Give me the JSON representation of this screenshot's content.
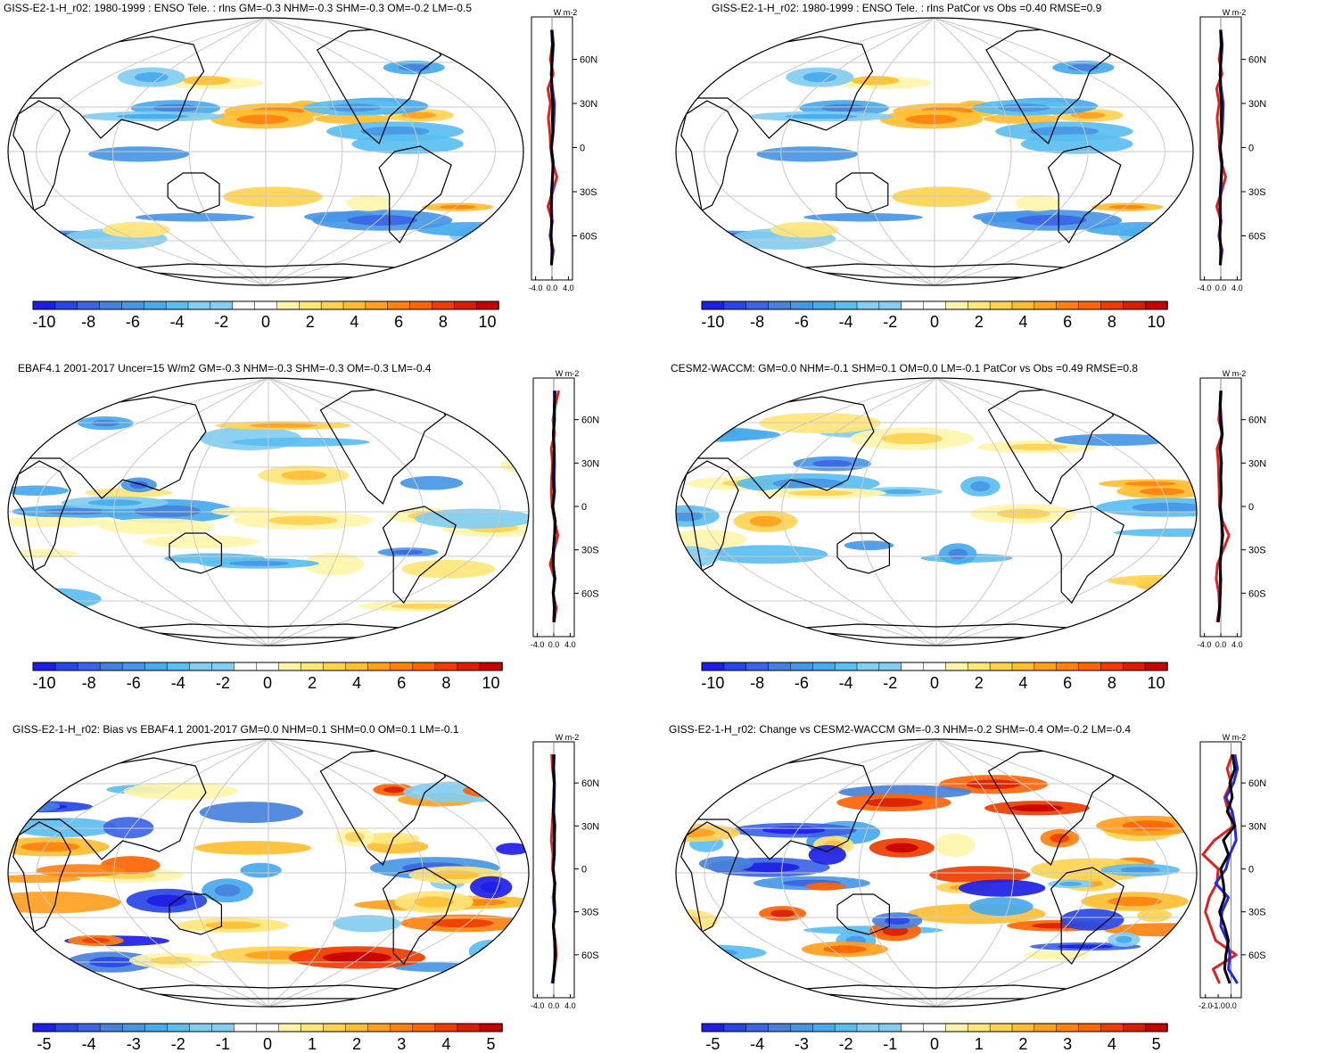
{
  "figure": {
    "variable": "rlns",
    "units_label": "W m-2",
    "palette": {
      "neg": [
        "#1e1ee6",
        "#2846e6",
        "#3c64e6",
        "#4682dc",
        "#4696e6",
        "#46aaeb",
        "#5abef0",
        "#82cdf0"
      ],
      "zero": "#ffffff",
      "pos": [
        "#fff5aa",
        "#ffe678",
        "#ffd250",
        "#ffbe32",
        "#ffa01e",
        "#ff820f",
        "#ff6405",
        "#f03c00",
        "#dc1e00",
        "#c80000"
      ],
      "continent_outline": "#000000",
      "grid": "#c8c8c8",
      "ocean_bg": "#ffffff"
    }
  },
  "panels": [
    {
      "id": "model",
      "title": "GISS-E2-1-H_r02: 1980-1999 : ENSO Tele. : rlns GM=-0.3 NHM=-0.3 SHM=-0.3 OM=-0.2 LM=-0.5",
      "colorbar_ticks": [
        "-10",
        "-8",
        "-6",
        "-4",
        "-2",
        "0",
        "2",
        "4",
        "6",
        "8",
        "10"
      ],
      "zonal_xticks": [
        "-4.0",
        "0.0",
        "4.0"
      ],
      "zonal_lat_labels": [
        "60N",
        "30N",
        "0",
        "30S",
        "60S"
      ],
      "units": "W m-2"
    },
    {
      "id": "model-vs-obs",
      "title": "GISS-E2-1-H_r02: 1980-1999 : ENSO Tele. : rlns PatCor vs Obs =0.40 RMSE=0.9",
      "colorbar_ticks": [
        "-10",
        "-8",
        "-6",
        "-4",
        "-2",
        "0",
        "2",
        "4",
        "6",
        "8",
        "10"
      ],
      "zonal_xticks": [
        "-4.0",
        "0.0",
        "4.0"
      ],
      "zonal_lat_labels": [
        "60N",
        "30N",
        "0",
        "30S",
        "60S"
      ],
      "units": "W m-2"
    },
    {
      "id": "obs",
      "title": "EBAF4.1 2001-2017 Uncer=15 W/m2 GM=-0.3 NHM=-0.3 SHM=-0.3 OM=-0.3 LM=-0.4",
      "colorbar_ticks": [
        "-10",
        "-8",
        "-6",
        "-4",
        "-2",
        "0",
        "2",
        "4",
        "6",
        "8",
        "10"
      ],
      "zonal_xticks": [
        "-4.0",
        "0.0",
        "4.0"
      ],
      "zonal_lat_labels": [
        "60N",
        "30N",
        "0",
        "30S",
        "60S"
      ],
      "units": "W m-2"
    },
    {
      "id": "reference-model",
      "title": "CESM2-WACCM: GM=0.0 NHM=-0.1 SHM=0.1 OM=0.0 LM=-0.1 PatCor vs Obs =0.49 RMSE=0.8",
      "colorbar_ticks": [
        "-10",
        "-8",
        "-6",
        "-4",
        "-2",
        "0",
        "2",
        "4",
        "6",
        "8",
        "10"
      ],
      "zonal_xticks": [
        "-4.0",
        "0.0",
        "4.0"
      ],
      "zonal_lat_labels": [
        "60N",
        "30N",
        "0",
        "30S",
        "60S"
      ],
      "units": "W m-2"
    },
    {
      "id": "bias",
      "title": "GISS-E2-1-H_r02: Bias vs EBAF4.1 2001-2017 GM=0.0 NHM=0.1 SHM=0.0 OM=0.1 LM=-0.1",
      "colorbar_ticks": [
        "-5",
        "-4",
        "-3",
        "-2",
        "-1",
        "0",
        "1",
        "2",
        "3",
        "4",
        "5"
      ],
      "zonal_xticks": [
        "-4.0",
        "0.0",
        "4.0"
      ],
      "zonal_lat_labels": [
        "60N",
        "30N",
        "0",
        "30S",
        "60S"
      ],
      "units": "W m-2"
    },
    {
      "id": "change",
      "title": "GISS-E2-1-H_r02: Change vs CESM2-WACCM GM=-0.3 NHM=-0.2 SHM=-0.4 OM=-0.2 LM=-0.4",
      "colorbar_ticks": [
        "-5",
        "-4",
        "-3",
        "-2",
        "-1",
        "0",
        "1",
        "2",
        "3",
        "4",
        "5"
      ],
      "zonal_xticks": [
        "-2.0",
        "-1.0",
        "0.0"
      ],
      "zonal_lat_labels": [
        "60N",
        "30N",
        "0",
        "30S",
        "60S"
      ],
      "units": "W m-2"
    }
  ],
  "chart_data": [
    {
      "type": "heatmap",
      "title": "GISS-E2-1-H_r02: 1980-1999 : ENSO Tele. : rlns GM=-0.3 NHM=-0.3 SHM=-0.3 OM=-0.2 LM=-0.5",
      "projection": "Robinson, Pacific-centred",
      "colorbar": {
        "min": -10,
        "max": 10,
        "ticks": [
          -10,
          -8,
          -6,
          -4,
          -2,
          0,
          2,
          4,
          6,
          8,
          10
        ]
      },
      "zonal_mean": {
        "xlim": [
          -5,
          5
        ],
        "xticks": [
          -4,
          0,
          4
        ],
        "lat": [
          -80,
          -70,
          -60,
          -50,
          -40,
          -30,
          -20,
          -10,
          0,
          10,
          20,
          30,
          40,
          50,
          60,
          70,
          80
        ],
        "series": [
          {
            "name": "model",
            "color": "black",
            "values": [
              -0.1,
              0,
              -0.2,
              -0.1,
              -0.2,
              -0.1,
              0.1,
              0.3,
              -0.2,
              0.2,
              0.1,
              0.2,
              -0.1,
              -0.1,
              0,
              0.1,
              0
            ]
          },
          {
            "name": "obs",
            "color": "red",
            "values": [
              -0.2,
              0.4,
              -0.5,
              0.1,
              -1.0,
              0.2,
              1.2,
              0.1,
              -0.3,
              -0.5,
              -0.9,
              -0.4,
              -1.0,
              0.3,
              -0.4,
              0.1,
              -0.1
            ]
          },
          {
            "name": "reference",
            "color": "blue",
            "values": [
              -0.1,
              0.1,
              -0.3,
              0,
              -0.1,
              0,
              0.2,
              0.2,
              -0.1,
              0.3,
              0.5,
              0.6,
              0.1,
              -0.2,
              0.1,
              0.4,
              0
            ]
          }
        ]
      }
    },
    {
      "type": "heatmap",
      "title": "GISS-E2-1-H_r02: 1980-1999 : ENSO Tele. : rlns PatCor vs Obs =0.40 RMSE=0.9",
      "projection": "Robinson, Pacific-centred",
      "colorbar": {
        "min": -10,
        "max": 10,
        "ticks": [
          -10,
          -8,
          -6,
          -4,
          -2,
          0,
          2,
          4,
          6,
          8,
          10
        ]
      },
      "zonal_mean": {
        "xlim": [
          -5,
          5
        ],
        "xticks": [
          -4,
          0,
          4
        ],
        "lat": [
          -80,
          -70,
          -60,
          -50,
          -40,
          -30,
          -20,
          -10,
          0,
          10,
          20,
          30,
          40,
          50,
          60,
          70,
          80
        ],
        "series": [
          {
            "name": "model",
            "color": "black",
            "values": [
              -0.1,
              0,
              -0.2,
              -0.1,
              -0.2,
              -0.1,
              0.1,
              0.3,
              -0.2,
              0.2,
              0.1,
              0.2,
              -0.1,
              -0.1,
              0,
              0.1,
              0
            ]
          },
          {
            "name": "obs",
            "color": "red",
            "values": [
              -0.2,
              0.4,
              -0.5,
              0.1,
              -1.0,
              0.2,
              1.2,
              0.1,
              -0.3,
              -0.5,
              -0.9,
              -0.4,
              -1.0,
              0.3,
              -0.4,
              0.1,
              -0.1
            ]
          },
          {
            "name": "reference",
            "color": "blue",
            "values": [
              -0.1,
              0.1,
              -0.3,
              0,
              -0.1,
              0,
              0.2,
              0.2,
              -0.1,
              0.3,
              0.5,
              0.6,
              0.1,
              -0.2,
              0.1,
              0.4,
              0
            ]
          }
        ]
      }
    },
    {
      "type": "heatmap",
      "title": "EBAF4.1 2001-2017 Uncer=15 W/m2 GM=-0.3 NHM=-0.3 SHM=-0.3 OM=-0.3 LM=-0.4",
      "projection": "Robinson, Pacific-centred",
      "colorbar": {
        "min": -10,
        "max": 10,
        "ticks": [
          -10,
          -8,
          -6,
          -4,
          -2,
          0,
          2,
          4,
          6,
          8,
          10
        ]
      },
      "zonal_mean": {
        "xlim": [
          -5,
          5
        ],
        "xticks": [
          -4,
          0,
          4
        ],
        "lat": [
          -80,
          -70,
          -60,
          -50,
          -40,
          -30,
          -20,
          -10,
          0,
          10,
          20,
          30,
          40,
          50,
          60,
          70,
          80
        ],
        "series": [
          {
            "name": "obs",
            "color": "black",
            "values": [
              0,
              0.2,
              -0.1,
              0.3,
              -0.2,
              -0.1,
              0.2,
              0.4,
              -0.3,
              0.1,
              -0.2,
              0,
              0.1,
              -0.1,
              0.2,
              0.1,
              0.3
            ]
          },
          {
            "name": "model",
            "color": "red",
            "values": [
              0.1,
              0.6,
              -0.2,
              0.2,
              -0.9,
              0.1,
              1.0,
              0.2,
              -0.4,
              -0.6,
              -0.5,
              -0.3,
              -0.6,
              0.2,
              -0.2,
              0.4,
              1.2
            ]
          },
          {
            "name": "reference",
            "color": "blue",
            "values": [
              0,
              0.1,
              -0.1,
              0.2,
              -0.1,
              0,
              0.2,
              0.3,
              -0.2,
              0.2,
              0.1,
              0.2,
              0.1,
              -0.1,
              0.1,
              0.2,
              0.1
            ]
          }
        ]
      }
    },
    {
      "type": "heatmap",
      "title": "CESM2-WACCM: GM=0.0 NHM=-0.1 SHM=0.1 OM=0.0 LM=-0.1 PatCor vs Obs =0.49 RMSE=0.8",
      "projection": "Robinson, Pacific-centred",
      "colorbar": {
        "min": -10,
        "max": 10,
        "ticks": [
          -10,
          -8,
          -6,
          -4,
          -2,
          0,
          2,
          4,
          6,
          8,
          10
        ]
      },
      "zonal_mean": {
        "xlim": [
          -5,
          5
        ],
        "xticks": [
          -4,
          0,
          4
        ],
        "lat": [
          -80,
          -70,
          -60,
          -50,
          -40,
          -30,
          -20,
          -10,
          0,
          10,
          20,
          30,
          40,
          50,
          60,
          70,
          80
        ],
        "series": [
          {
            "name": "reference",
            "color": "black",
            "values": [
              -0.6,
              -0.3,
              -0.1,
              0,
              -0.2,
              0.1,
              0.5,
              0.2,
              -0.1,
              0.1,
              0,
              0.1,
              -0.2,
              0.3,
              -0.1,
              -0.2,
              0
            ]
          },
          {
            "name": "model",
            "color": "red",
            "values": [
              -0.9,
              -0.3,
              -0.5,
              -1.1,
              -0.8,
              0.6,
              2.0,
              0.4,
              -0.3,
              -0.4,
              -0.5,
              -0.6,
              -0.9,
              0.4,
              -0.5,
              -0.1,
              0.1
            ]
          },
          {
            "name": "obs",
            "color": "blue",
            "values": [
              -0.7,
              -0.2,
              -0.2,
              -0.1,
              -0.1,
              0.1,
              0.4,
              0.2,
              -0.2,
              0.1,
              0,
              0.2,
              -0.1,
              0.4,
              0.1,
              -0.1,
              0
            ]
          }
        ]
      }
    },
    {
      "type": "heatmap",
      "title": "GISS-E2-1-H_r02: Bias vs EBAF4.1 2001-2017 GM=0.0 NHM=0.1 SHM=0.0 OM=0.1 LM=-0.1",
      "projection": "Robinson, Pacific-centred",
      "colorbar": {
        "min": -5,
        "max": 5,
        "ticks": [
          -5,
          -4,
          -3,
          -2,
          -1,
          0,
          1,
          2,
          3,
          4,
          5
        ]
      },
      "zonal_mean": {
        "xlim": [
          -5,
          5
        ],
        "xticks": [
          -4,
          0,
          4
        ],
        "lat": [
          -80,
          -70,
          -60,
          -50,
          -40,
          -30,
          -20,
          -10,
          0,
          10,
          20,
          30,
          40,
          50,
          60,
          70,
          80
        ],
        "series": [
          {
            "name": "model",
            "color": "black",
            "values": [
              -0.2,
              0.1,
              0.4,
              0.2,
              -0.1,
              0.3,
              0.1,
              0.2,
              -0.1,
              0.1,
              0.2,
              0.1,
              -0.1,
              0,
              0.1,
              -0.1,
              0
            ]
          },
          {
            "name": "obs",
            "color": "red",
            "values": [
              -0.3,
              0.2,
              0.6,
              0.4,
              -0.1,
              0.2,
              -0.2,
              0.3,
              -0.3,
              -0.2,
              -0.6,
              -0.4,
              -0.2,
              0,
              0.1,
              -0.3,
              -0.5
            ]
          },
          {
            "name": "reference",
            "color": "blue",
            "values": [
              -0.4,
              0.1,
              0.3,
              0.2,
              -0.1,
              0.2,
              0.1,
              0.3,
              -0.2,
              0.2,
              0.1,
              0.3,
              0,
              0.1,
              0.2,
              0,
              0.1
            ]
          }
        ]
      }
    },
    {
      "type": "heatmap",
      "title": "GISS-E2-1-H_r02: Change vs CESM2-WACCM GM=-0.3 NHM=-0.2 SHM=-0.4 OM=-0.2 LM=-0.4",
      "projection": "Robinson, Pacific-centred",
      "colorbar": {
        "min": -5,
        "max": 5,
        "ticks": [
          -5,
          -4,
          -3,
          -2,
          -1,
          0,
          1,
          2,
          3,
          4,
          5
        ]
      },
      "zonal_mean": {
        "xlim": [
          -2.4,
          0.8
        ],
        "xticks": [
          -2,
          -1,
          0
        ],
        "lat": [
          -80,
          -70,
          -60,
          -50,
          -40,
          -30,
          -20,
          -10,
          0,
          10,
          20,
          30,
          40,
          50,
          60,
          70,
          80
        ],
        "series": [
          {
            "name": "model",
            "color": "black",
            "values": [
              -0.1,
              -0.5,
              -0.4,
              -0.2,
              -0.5,
              -0.9,
              -0.5,
              -0.6,
              -0.8,
              -0.2,
              -0.6,
              0.3,
              -0.3,
              0.1,
              -0.1,
              0.3,
              0.1
            ]
          },
          {
            "name": "obs",
            "color": "red",
            "values": [
              -0.9,
              -1.4,
              0.4,
              -1.2,
              -1.6,
              -2.0,
              -1.7,
              -1.1,
              -1.0,
              -2.2,
              -1.3,
              0.2,
              -0.2,
              -0.5,
              0,
              -0.3,
              0.1
            ]
          },
          {
            "name": "reference",
            "color": "blue",
            "values": [
              0.5,
              -0.2,
              -0.1,
              -0.3,
              -0.8,
              -0.7,
              -0.2,
              -1.2,
              -0.4,
              -0.1,
              0.4,
              0.3,
              0.1,
              -0.4,
              0.2,
              0.5,
              0.3
            ]
          }
        ]
      }
    }
  ]
}
